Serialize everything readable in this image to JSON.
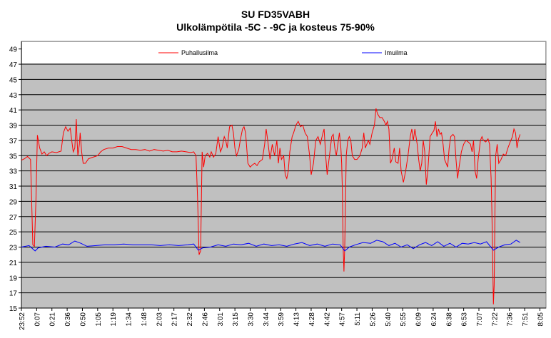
{
  "chart_data": {
    "type": "line",
    "title": "SU FD35VABH",
    "subtitle": "Ulkolämpötila -5C - -9C ja kosteus 75-90%",
    "xlabel": "",
    "ylabel": "",
    "ylim": [
      15,
      50
    ],
    "y_ticks": [
      15,
      17,
      19,
      21,
      23,
      25,
      27,
      29,
      31,
      33,
      35,
      37,
      39,
      41,
      43,
      45,
      47,
      49
    ],
    "x_tick_labels": [
      "23:52",
      "0:07",
      "0:21",
      "0:36",
      "0:50",
      "1:05",
      "1:19",
      "1:34",
      "1:48",
      "2:03",
      "2:17",
      "2:32",
      "2:46",
      "3:01",
      "3:15",
      "3:30",
      "3:44",
      "3:59",
      "4:13",
      "4:28",
      "4:42",
      "4:57",
      "5:11",
      "5:26",
      "5:40",
      "5:55",
      "6:09",
      "6:24",
      "6:38",
      "6:53",
      "7:07",
      "7:22",
      "7:36",
      "7:51",
      "8:05"
    ],
    "grid": true,
    "legend_position": "top",
    "background_color": "#c0c0c0",
    "series": [
      {
        "name": "Puhallusilma",
        "color": "#ff0000",
        "points": [
          [
            0,
            34.4
          ],
          [
            0.2,
            34.6
          ],
          [
            0.4,
            34.9
          ],
          [
            0.6,
            34.5
          ],
          [
            0.75,
            23.3
          ],
          [
            0.85,
            23.1
          ],
          [
            0.95,
            29
          ],
          [
            1.05,
            37.7
          ],
          [
            1.2,
            36
          ],
          [
            1.35,
            35.2
          ],
          [
            1.5,
            35.5
          ],
          [
            1.65,
            35
          ],
          [
            1.8,
            35.3
          ],
          [
            2,
            35.5
          ],
          [
            2.3,
            35.4
          ],
          [
            2.6,
            35.6
          ],
          [
            2.75,
            38
          ],
          [
            2.9,
            38.8
          ],
          [
            3.05,
            38.2
          ],
          [
            3.2,
            38.6
          ],
          [
            3.3,
            37
          ],
          [
            3.4,
            35.5
          ],
          [
            3.5,
            36
          ],
          [
            3.6,
            39.8
          ],
          [
            3.65,
            37
          ],
          [
            3.7,
            35
          ],
          [
            3.8,
            36.5
          ],
          [
            3.85,
            38
          ],
          [
            3.95,
            35.5
          ],
          [
            4.05,
            34
          ],
          [
            4.2,
            34
          ],
          [
            4.4,
            34.6
          ],
          [
            4.7,
            34.8
          ],
          [
            5,
            35
          ],
          [
            5.2,
            35.5
          ],
          [
            5.4,
            35.8
          ],
          [
            5.7,
            36
          ],
          [
            6,
            36
          ],
          [
            6.3,
            36.2
          ],
          [
            6.6,
            36.2
          ],
          [
            6.9,
            36
          ],
          [
            7.2,
            35.8
          ],
          [
            7.5,
            35.8
          ],
          [
            7.8,
            35.7
          ],
          [
            8.1,
            35.8
          ],
          [
            8.4,
            35.6
          ],
          [
            8.7,
            35.8
          ],
          [
            9,
            35.7
          ],
          [
            9.3,
            35.6
          ],
          [
            9.6,
            35.7
          ],
          [
            9.9,
            35.5
          ],
          [
            10.2,
            35.5
          ],
          [
            10.5,
            35.6
          ],
          [
            10.8,
            35.5
          ],
          [
            11.1,
            35.4
          ],
          [
            11.3,
            35.5
          ],
          [
            11.45,
            35
          ],
          [
            11.55,
            29.5
          ],
          [
            11.65,
            22
          ],
          [
            11.75,
            22.5
          ],
          [
            11.85,
            35.5
          ],
          [
            11.95,
            33.5
          ],
          [
            12.05,
            35
          ],
          [
            12.2,
            35.3
          ],
          [
            12.35,
            34.8
          ],
          [
            12.45,
            35.5
          ],
          [
            12.6,
            34.8
          ],
          [
            12.75,
            35.3
          ],
          [
            12.9,
            37.5
          ],
          [
            13.05,
            35.5
          ],
          [
            13.15,
            36
          ],
          [
            13.3,
            37.5
          ],
          [
            13.4,
            37
          ],
          [
            13.5,
            36
          ],
          [
            13.65,
            38.8
          ],
          [
            13.8,
            39
          ],
          [
            13.9,
            38
          ],
          [
            14,
            36
          ],
          [
            14.1,
            35
          ],
          [
            14.25,
            35.8
          ],
          [
            14.35,
            37
          ],
          [
            14.5,
            38.5
          ],
          [
            14.6,
            38.8
          ],
          [
            14.7,
            38
          ],
          [
            14.85,
            34
          ],
          [
            15,
            33.5
          ],
          [
            15.15,
            33.8
          ],
          [
            15.3,
            34
          ],
          [
            15.45,
            33.7
          ],
          [
            15.6,
            34.2
          ],
          [
            15.8,
            34.5
          ],
          [
            15.95,
            36.5
          ],
          [
            16.05,
            38.5
          ],
          [
            16.15,
            37
          ],
          [
            16.3,
            34.5
          ],
          [
            16.45,
            36.5
          ],
          [
            16.6,
            35
          ],
          [
            16.75,
            37
          ],
          [
            16.85,
            34
          ],
          [
            16.95,
            36
          ],
          [
            17.05,
            34.5
          ],
          [
            17.2,
            35
          ],
          [
            17.3,
            32.5
          ],
          [
            17.4,
            32
          ],
          [
            17.5,
            33
          ],
          [
            17.6,
            35.5
          ],
          [
            17.75,
            37.5
          ],
          [
            17.85,
            38
          ],
          [
            18,
            39
          ],
          [
            18.15,
            39.5
          ],
          [
            18.3,
            38.8
          ],
          [
            18.45,
            39
          ],
          [
            18.6,
            38
          ],
          [
            18.75,
            37.5
          ],
          [
            18.9,
            35
          ],
          [
            19,
            32.5
          ],
          [
            19.15,
            34
          ],
          [
            19.3,
            37
          ],
          [
            19.45,
            37.5
          ],
          [
            19.6,
            36.5
          ],
          [
            19.75,
            37.8
          ],
          [
            19.85,
            38.5
          ],
          [
            19.95,
            35
          ],
          [
            20.05,
            32.5
          ],
          [
            20.2,
            35
          ],
          [
            20.35,
            37.5
          ],
          [
            20.45,
            37.8
          ],
          [
            20.55,
            36
          ],
          [
            20.65,
            35
          ],
          [
            20.75,
            36.5
          ],
          [
            20.85,
            38
          ],
          [
            20.95,
            36
          ],
          [
            21,
            34
          ],
          [
            21.05,
            30
          ],
          [
            21.1,
            23
          ],
          [
            21.15,
            19.8
          ],
          [
            21.2,
            23
          ],
          [
            21.3,
            35
          ],
          [
            21.4,
            37
          ],
          [
            21.5,
            37.5
          ],
          [
            21.6,
            37
          ],
          [
            21.7,
            35
          ],
          [
            21.85,
            34.5
          ],
          [
            22,
            34.5
          ],
          [
            22.2,
            35
          ],
          [
            22.35,
            36
          ],
          [
            22.45,
            38
          ],
          [
            22.55,
            36
          ],
          [
            22.65,
            36.5
          ],
          [
            22.75,
            37
          ],
          [
            22.85,
            36.5
          ],
          [
            23,
            38
          ],
          [
            23.15,
            39
          ],
          [
            23.25,
            41.2
          ],
          [
            23.35,
            40.5
          ],
          [
            23.5,
            40
          ],
          [
            23.65,
            40
          ],
          [
            23.8,
            39.5
          ],
          [
            23.9,
            39
          ],
          [
            24,
            39.5
          ],
          [
            24.1,
            38.5
          ],
          [
            24.2,
            34
          ],
          [
            24.3,
            34.5
          ],
          [
            24.45,
            36
          ],
          [
            24.55,
            34.2
          ],
          [
            24.7,
            34
          ],
          [
            24.8,
            36
          ],
          [
            24.9,
            33
          ],
          [
            25.05,
            31.5
          ],
          [
            25.2,
            33
          ],
          [
            25.35,
            35
          ],
          [
            25.5,
            37.5
          ],
          [
            25.6,
            38.5
          ],
          [
            25.7,
            37
          ],
          [
            25.8,
            38.5
          ],
          [
            25.95,
            36.5
          ],
          [
            26.05,
            34.5
          ],
          [
            26.15,
            33
          ],
          [
            26.25,
            34
          ],
          [
            26.35,
            37
          ],
          [
            26.45,
            35.5
          ],
          [
            26.55,
            31.2
          ],
          [
            26.65,
            33
          ],
          [
            26.8,
            37.5
          ],
          [
            26.95,
            38
          ],
          [
            27.05,
            38.3
          ],
          [
            27.15,
            39.5
          ],
          [
            27.25,
            37.5
          ],
          [
            27.35,
            38.5
          ],
          [
            27.45,
            37.8
          ],
          [
            27.55,
            38
          ],
          [
            27.65,
            36.5
          ],
          [
            27.75,
            34.5
          ],
          [
            27.85,
            34
          ],
          [
            27.95,
            33.5
          ],
          [
            28.05,
            36
          ],
          [
            28.15,
            37.5
          ],
          [
            28.3,
            37.8
          ],
          [
            28.4,
            37.5
          ],
          [
            28.5,
            34.5
          ],
          [
            28.6,
            32
          ],
          [
            28.7,
            33.5
          ],
          [
            28.85,
            35.5
          ],
          [
            29,
            36.5
          ],
          [
            29.15,
            37
          ],
          [
            29.3,
            36.8
          ],
          [
            29.45,
            36.5
          ],
          [
            29.55,
            35.5
          ],
          [
            29.65,
            37
          ],
          [
            29.75,
            33
          ],
          [
            29.85,
            32
          ],
          [
            29.95,
            34.5
          ],
          [
            30.1,
            37
          ],
          [
            30.2,
            37.5
          ],
          [
            30.3,
            37
          ],
          [
            30.45,
            36.8
          ],
          [
            30.6,
            37.2
          ],
          [
            30.7,
            36.5
          ],
          [
            30.8,
            32
          ],
          [
            30.85,
            28
          ],
          [
            30.9,
            22
          ],
          [
            30.95,
            15.5
          ],
          [
            31,
            18
          ],
          [
            31.05,
            27
          ],
          [
            31.1,
            35
          ],
          [
            31.2,
            36.5
          ],
          [
            31.3,
            34
          ],
          [
            31.45,
            34.5
          ],
          [
            31.6,
            35.2
          ],
          [
            31.75,
            35
          ],
          [
            31.9,
            36
          ],
          [
            32.05,
            36.8
          ],
          [
            32.2,
            37.5
          ],
          [
            32.3,
            38.5
          ],
          [
            32.4,
            38
          ],
          [
            32.5,
            36
          ],
          [
            32.6,
            37.2
          ],
          [
            32.7,
            37.8
          ]
        ]
      },
      {
        "name": "Imuilma",
        "color": "#0000ff",
        "points": [
          [
            0,
            23
          ],
          [
            0.5,
            23.2
          ],
          [
            0.9,
            22.5
          ],
          [
            1.1,
            22.9
          ],
          [
            1.6,
            23.1
          ],
          [
            2.2,
            23
          ],
          [
            2.7,
            23.4
          ],
          [
            3.1,
            23.3
          ],
          [
            3.5,
            23.8
          ],
          [
            3.9,
            23.5
          ],
          [
            4.3,
            23.1
          ],
          [
            4.9,
            23.2
          ],
          [
            5.5,
            23.3
          ],
          [
            6.1,
            23.3
          ],
          [
            6.7,
            23.4
          ],
          [
            7.3,
            23.3
          ],
          [
            7.9,
            23.3
          ],
          [
            8.5,
            23.3
          ],
          [
            9.1,
            23.2
          ],
          [
            9.7,
            23.3
          ],
          [
            10.3,
            23.2
          ],
          [
            10.9,
            23.3
          ],
          [
            11.3,
            23.4
          ],
          [
            11.6,
            22.6
          ],
          [
            11.9,
            22.9
          ],
          [
            12.4,
            23
          ],
          [
            12.9,
            23.3
          ],
          [
            13.4,
            23.1
          ],
          [
            13.9,
            23.4
          ],
          [
            14.4,
            23.3
          ],
          [
            14.9,
            23.5
          ],
          [
            15.4,
            23.1
          ],
          [
            15.9,
            23.4
          ],
          [
            16.4,
            23.2
          ],
          [
            16.9,
            23.3
          ],
          [
            17.4,
            23.1
          ],
          [
            17.9,
            23.4
          ],
          [
            18.4,
            23.6
          ],
          [
            18.9,
            23.2
          ],
          [
            19.4,
            23.4
          ],
          [
            19.9,
            23.1
          ],
          [
            20.4,
            23.4
          ],
          [
            20.9,
            23.3
          ],
          [
            21.2,
            22.5
          ],
          [
            21.5,
            23
          ],
          [
            21.9,
            23.3
          ],
          [
            22.4,
            23.6
          ],
          [
            22.9,
            23.5
          ],
          [
            23.3,
            23.9
          ],
          [
            23.7,
            23.7
          ],
          [
            24.1,
            23.2
          ],
          [
            24.5,
            23.5
          ],
          [
            24.9,
            23
          ],
          [
            25.3,
            23.3
          ],
          [
            25.7,
            22.8
          ],
          [
            26.1,
            23.3
          ],
          [
            26.5,
            23.6
          ],
          [
            26.9,
            23.2
          ],
          [
            27.3,
            23.7
          ],
          [
            27.7,
            23.1
          ],
          [
            28.1,
            23.5
          ],
          [
            28.5,
            23
          ],
          [
            28.9,
            23.5
          ],
          [
            29.3,
            23.4
          ],
          [
            29.7,
            23.6
          ],
          [
            30.1,
            23.4
          ],
          [
            30.5,
            23.7
          ],
          [
            30.95,
            22.6
          ],
          [
            31.3,
            23
          ],
          [
            31.7,
            23.3
          ],
          [
            32.1,
            23.4
          ],
          [
            32.45,
            23.9
          ],
          [
            32.7,
            23.6
          ]
        ]
      }
    ]
  }
}
